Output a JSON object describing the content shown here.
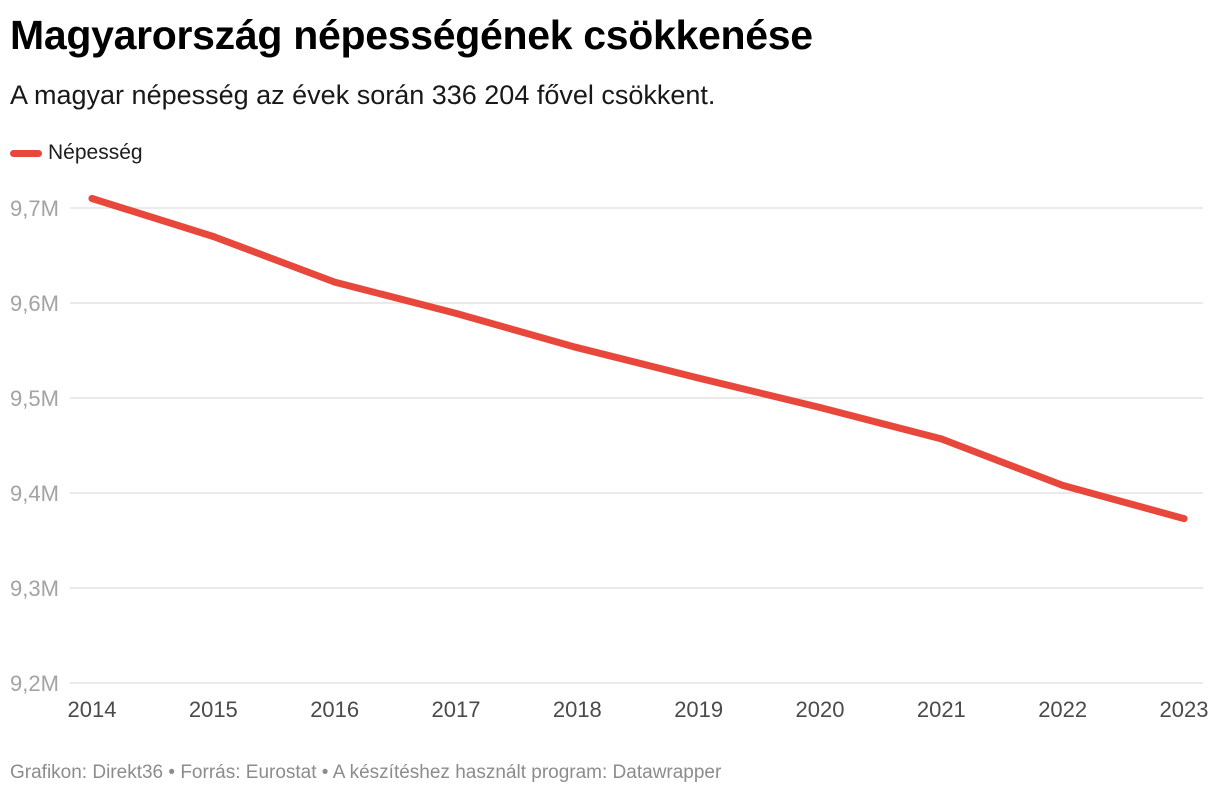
{
  "header": {
    "title": "Magyarország népességének csökkenése",
    "subtitle": "A magyar népesség az évek során 336 204 fővel csökkent."
  },
  "footer": {
    "credit": "Grafikon: Direkt36 • Forrás: Eurostat • A készítéshez használt program: Datawrapper"
  },
  "colors": {
    "line": "#e8473b",
    "grid": "#dddddd",
    "ytick": "#a3a3a3",
    "xtick": "#4a4a4a"
  },
  "chart_data": {
    "type": "line",
    "title": "Magyarország népességének csökkenése",
    "xlabel": "",
    "ylabel": "",
    "x": [
      "2014",
      "2015",
      "2016",
      "2017",
      "2018",
      "2019",
      "2020",
      "2021",
      "2022",
      "2023"
    ],
    "series": [
      {
        "name": "Népesség",
        "values": [
          9710000,
          9670000,
          9622000,
          9589000,
          9553000,
          9521000,
          9490000,
          9457000,
          9408000,
          9373000
        ]
      }
    ],
    "ylim": [
      9200000,
      9750000
    ],
    "yticks": [
      {
        "value": 9700000,
        "label": "9,7M"
      },
      {
        "value": 9600000,
        "label": "9,6M"
      },
      {
        "value": 9500000,
        "label": "9,5M"
      },
      {
        "value": 9400000,
        "label": "9,4M"
      },
      {
        "value": 9300000,
        "label": "9,3M"
      },
      {
        "value": 9200000,
        "label": "9,2M"
      }
    ],
    "grid": true,
    "legend": "top-left"
  }
}
